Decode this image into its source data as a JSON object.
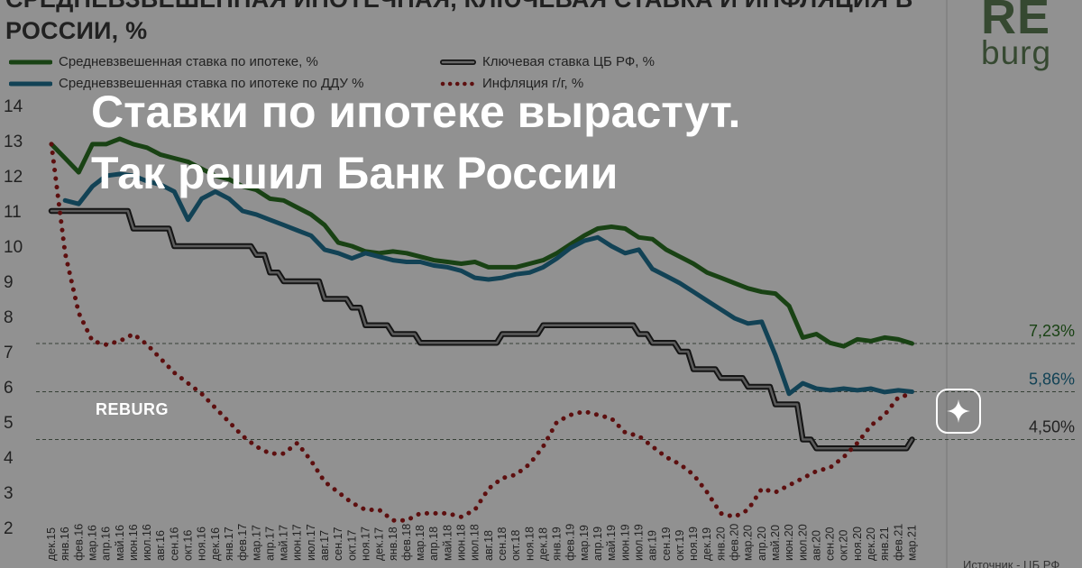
{
  "title": {
    "line1": "СРЕДНЕВЗВЕШЕННАЯ ИПОТЕЧНАЯ, КЛЮЧЕВАЯ СТАВКА И ИНФЛЯЦИЯ В",
    "line2": "РОССИИ, %"
  },
  "logo": {
    "re": "RE",
    "burg": "burg"
  },
  "headline": {
    "line1": "Ставки по ипотеке вырастут.",
    "line2": "Так решил Банк России"
  },
  "watermark": "REBURG",
  "source_text": "Источник - ЦБ РФ",
  "colors": {
    "mortgage": "#2b6e22",
    "ddu": "#1f6e8e",
    "key_rate_outer": "#222222",
    "key_rate_inner": "#9a9a9a",
    "inflation": "#9b1a1a",
    "overlay": "rgba(0,0,0,0.40)",
    "background": "#f2f2f2"
  },
  "icons": {
    "action": "sparkle-icon"
  },
  "chart_data": {
    "type": "line",
    "title": "СРЕДНЕВЗВЕШЕННАЯ ИПОТЕЧНАЯ, КЛЮЧЕВАЯ СТАВКА И ИНФЛЯЦИЯ В РОССИИ, %",
    "ylim": [
      2,
      14
    ],
    "yticks": [
      2,
      3,
      4,
      5,
      6,
      7,
      8,
      9,
      10,
      11,
      12,
      13,
      14
    ],
    "grid": false,
    "legend_position": "top-left",
    "x": [
      "дек.15",
      "янв.16",
      "фев.16",
      "мар.16",
      "апр.16",
      "май.16",
      "июн.16",
      "июл.16",
      "авг.16",
      "сен.16",
      "окт.16",
      "ноя.16",
      "дек.16",
      "янв.17",
      "фев.17",
      "мар.17",
      "апр.17",
      "май.17",
      "июн.17",
      "июл.17",
      "авг.17",
      "сен.17",
      "окт.17",
      "ноя.17",
      "дек.17",
      "янв.18",
      "фев.18",
      "мар.18",
      "апр.18",
      "май.18",
      "июн.18",
      "июл.18",
      "авг.18",
      "сен.18",
      "окт.18",
      "ноя.18",
      "дек.18",
      "янв.19",
      "фев.19",
      "мар.19",
      "апр.19",
      "май.19",
      "июн.19",
      "июл.19",
      "авг.19",
      "сен.19",
      "окт.19",
      "ноя.19",
      "дек.19",
      "янв.20",
      "фев.20",
      "мар.20",
      "апр.20",
      "май.20",
      "июн.20",
      "июл.20",
      "авг.20",
      "сен.20",
      "окт.20",
      "ноя.20",
      "дек.20",
      "янв.21",
      "фев.21",
      "мар.21"
    ],
    "x_tick_labels": [
      "дек.15",
      "янв.16",
      "фев.16",
      "мар.16",
      "апр.16",
      "май.16",
      "июн.16",
      "июл.16",
      "авг.16",
      "сен.16",
      "окт.16",
      "ноя.16",
      "дек.16",
      "янв.17",
      "фев.17",
      "мар.17",
      "апр.17",
      "май.17",
      "июн.17",
      "июл.17",
      "авг.17",
      "сен.17",
      "окт.17",
      "ноя.17",
      "дек.17",
      "янв.18",
      "фев.18",
      "мар.18",
      "апр.18",
      "май.18",
      "июн.18",
      "июл.18",
      "авг.18",
      "сен.18",
      "окт.18",
      "ноя.18",
      "дек.18",
      "янв.19",
      "фев.19",
      "мар.19",
      "апр.19",
      "май.19",
      "июн.19",
      "июл.19",
      "авг.19",
      "сен.19",
      "окт.19",
      "ноя.19",
      "дек.19",
      "янв.20",
      "фев.20",
      "мар.20",
      "апр.20",
      "май.20",
      "июн.20",
      "июл.20",
      "авг.20",
      "сен.20",
      "окт.20",
      "ноя.20",
      "дек.20",
      "янв.21",
      "фев.21",
      "мар.21"
    ],
    "series": [
      {
        "name": "Средневзвешенная ставка по ипотеке, %",
        "key": "mortgage",
        "style": "solid",
        "values": [
          12.9,
          12.5,
          12.1,
          12.9,
          12.9,
          13.05,
          12.9,
          12.8,
          12.6,
          12.5,
          12.4,
          12.2,
          12.0,
          11.9,
          11.7,
          11.6,
          11.35,
          11.3,
          11.1,
          10.9,
          10.6,
          10.1,
          10.0,
          9.85,
          9.8,
          9.85,
          9.8,
          9.7,
          9.6,
          9.55,
          9.5,
          9.55,
          9.4,
          9.4,
          9.4,
          9.5,
          9.6,
          9.8,
          10.05,
          10.3,
          10.5,
          10.55,
          10.5,
          10.25,
          10.2,
          9.9,
          9.7,
          9.5,
          9.25,
          9.1,
          8.95,
          8.8,
          8.7,
          8.65,
          8.3,
          7.4,
          7.5,
          7.25,
          7.15,
          7.35,
          7.3,
          7.4,
          7.35,
          7.23
        ]
      },
      {
        "name": "Средневзвешенная ставка по ипотеке по ДДУ %",
        "key": "ddu",
        "style": "solid",
        "values": [
          null,
          11.3,
          11.2,
          11.7,
          12.0,
          12.05,
          12.0,
          11.85,
          11.75,
          11.55,
          10.75,
          11.35,
          11.55,
          11.35,
          11.0,
          10.9,
          10.75,
          10.6,
          10.45,
          10.3,
          9.9,
          9.8,
          9.65,
          9.8,
          9.7,
          9.6,
          9.55,
          9.55,
          9.45,
          9.4,
          9.3,
          9.1,
          9.05,
          9.1,
          9.2,
          9.25,
          9.4,
          9.65,
          9.95,
          10.15,
          10.25,
          10.0,
          9.8,
          9.9,
          9.35,
          9.15,
          8.95,
          8.7,
          8.45,
          8.2,
          7.95,
          7.8,
          7.85,
          6.9,
          5.8,
          6.1,
          5.95,
          5.9,
          5.95,
          5.9,
          5.95,
          5.85,
          5.9,
          5.86
        ]
      },
      {
        "name": "Ключевая ставка ЦБ РФ, %",
        "key": "key_rate",
        "style": "step-double",
        "values": [
          11.0,
          11.0,
          11.0,
          11.0,
          11.0,
          11.0,
          10.5,
          10.5,
          10.5,
          10.0,
          10.0,
          10.0,
          10.0,
          10.0,
          10.0,
          9.75,
          9.25,
          9.0,
          9.0,
          9.0,
          8.5,
          8.5,
          8.25,
          7.75,
          7.75,
          7.5,
          7.5,
          7.25,
          7.25,
          7.25,
          7.25,
          7.25,
          7.25,
          7.5,
          7.5,
          7.5,
          7.75,
          7.75,
          7.75,
          7.75,
          7.75,
          7.75,
          7.75,
          7.5,
          7.25,
          7.25,
          7.0,
          6.5,
          6.5,
          6.25,
          6.25,
          6.0,
          6.0,
          5.5,
          5.5,
          4.5,
          4.25,
          4.25,
          4.25,
          4.25,
          4.25,
          4.25,
          4.25,
          4.5
        ]
      },
      {
        "name": "Инфляция г/г,  %",
        "key": "inflation",
        "style": "dotted",
        "values": [
          12.9,
          9.8,
          8.1,
          7.3,
          7.2,
          7.3,
          7.5,
          7.2,
          6.8,
          6.4,
          6.1,
          5.8,
          5.4,
          5.0,
          4.6,
          4.3,
          4.1,
          4.1,
          4.4,
          3.9,
          3.3,
          3.0,
          2.7,
          2.5,
          2.5,
          2.2,
          2.2,
          2.4,
          2.4,
          2.4,
          2.3,
          2.5,
          3.1,
          3.4,
          3.5,
          3.8,
          4.3,
          5.0,
          5.2,
          5.3,
          5.2,
          5.1,
          4.7,
          4.6,
          4.3,
          4.0,
          3.8,
          3.5,
          3.0,
          2.4,
          2.3,
          2.5,
          3.1,
          3.0,
          3.2,
          3.4,
          3.6,
          3.7,
          4.0,
          4.4,
          4.9,
          5.2,
          5.7,
          5.8
        ]
      }
    ],
    "reference_lines": [
      {
        "value": 7.23,
        "label": "7,23%",
        "key": "mortgage"
      },
      {
        "value": 5.86,
        "label": "5,86%",
        "key": "ddu"
      },
      {
        "value": 4.5,
        "label": "4,50%",
        "key": "key_rate"
      }
    ]
  }
}
